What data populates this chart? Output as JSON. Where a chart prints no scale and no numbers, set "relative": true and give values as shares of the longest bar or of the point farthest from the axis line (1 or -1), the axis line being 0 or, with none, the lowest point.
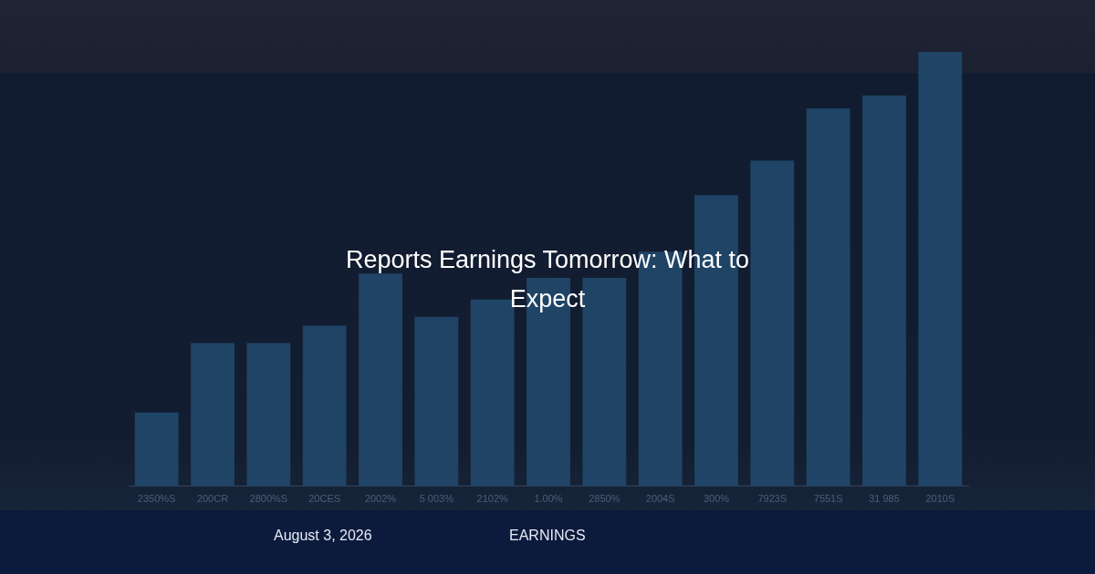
{
  "chart_data": {
    "type": "bar",
    "title": "Reports Earnings Tomorrow: What to Expect",
    "categories": [
      "2350%S",
      "200CR",
      "2800%S",
      "20CES",
      "2002%",
      "5 003%",
      "2102%",
      "1.00%",
      "2850%",
      "2004S",
      "300%",
      "7923S",
      "7551S",
      "31 985",
      "2010S"
    ],
    "values": [
      0.17,
      0.33,
      0.33,
      0.37,
      0.49,
      0.39,
      0.43,
      0.48,
      0.48,
      0.54,
      0.67,
      0.75,
      0.87,
      0.9,
      1
    ],
    "color": "#1f4466",
    "relative": true,
    "annotations": [
      "August 3, 2026",
      "EARNINGS"
    ]
  }
}
